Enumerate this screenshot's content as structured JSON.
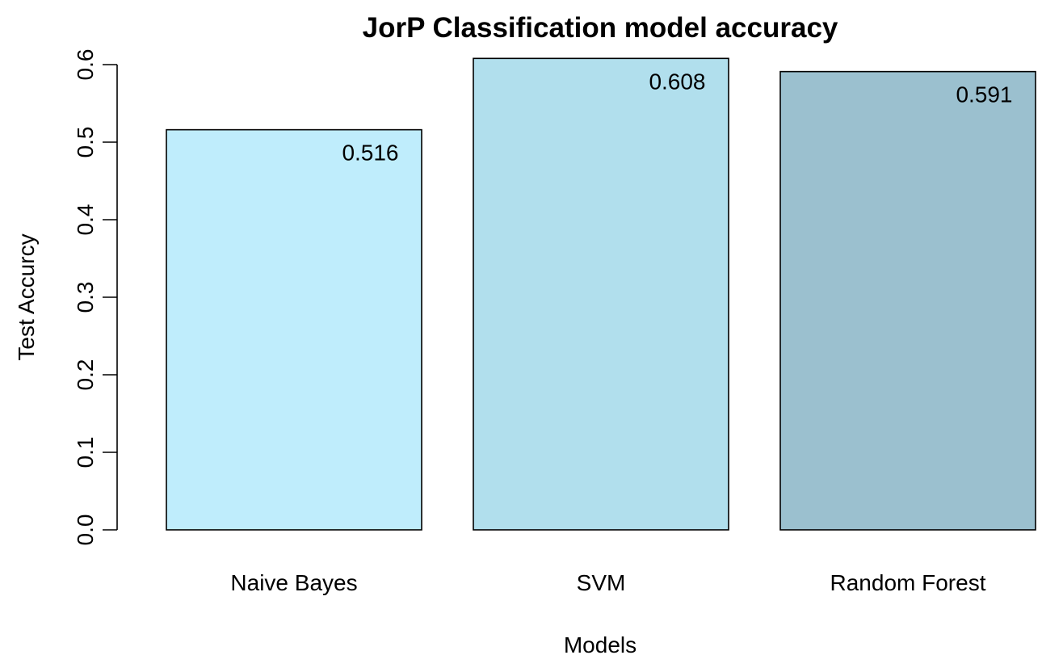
{
  "chart_data": {
    "type": "bar",
    "title": "JorP Classification model accuracy",
    "xlabel": "Models",
    "ylabel": "Test Accurcy",
    "categories": [
      "Naive Bayes",
      "SVM",
      "Random Forest"
    ],
    "values": [
      0.516,
      0.608,
      0.591
    ],
    "value_labels": [
      "0.516",
      "0.608",
      "0.591"
    ],
    "bar_colors": [
      "#bfedfc",
      "#b1dfed",
      "#9bc0cf"
    ],
    "yticks": [
      0.0,
      0.1,
      0.2,
      0.3,
      0.4,
      0.5,
      0.6
    ],
    "ytick_labels": [
      "0.0",
      "0.1",
      "0.2",
      "0.3",
      "0.4",
      "0.5",
      "0.6"
    ],
    "ylim": [
      0,
      0.6
    ],
    "grid": false,
    "legend": "none"
  }
}
